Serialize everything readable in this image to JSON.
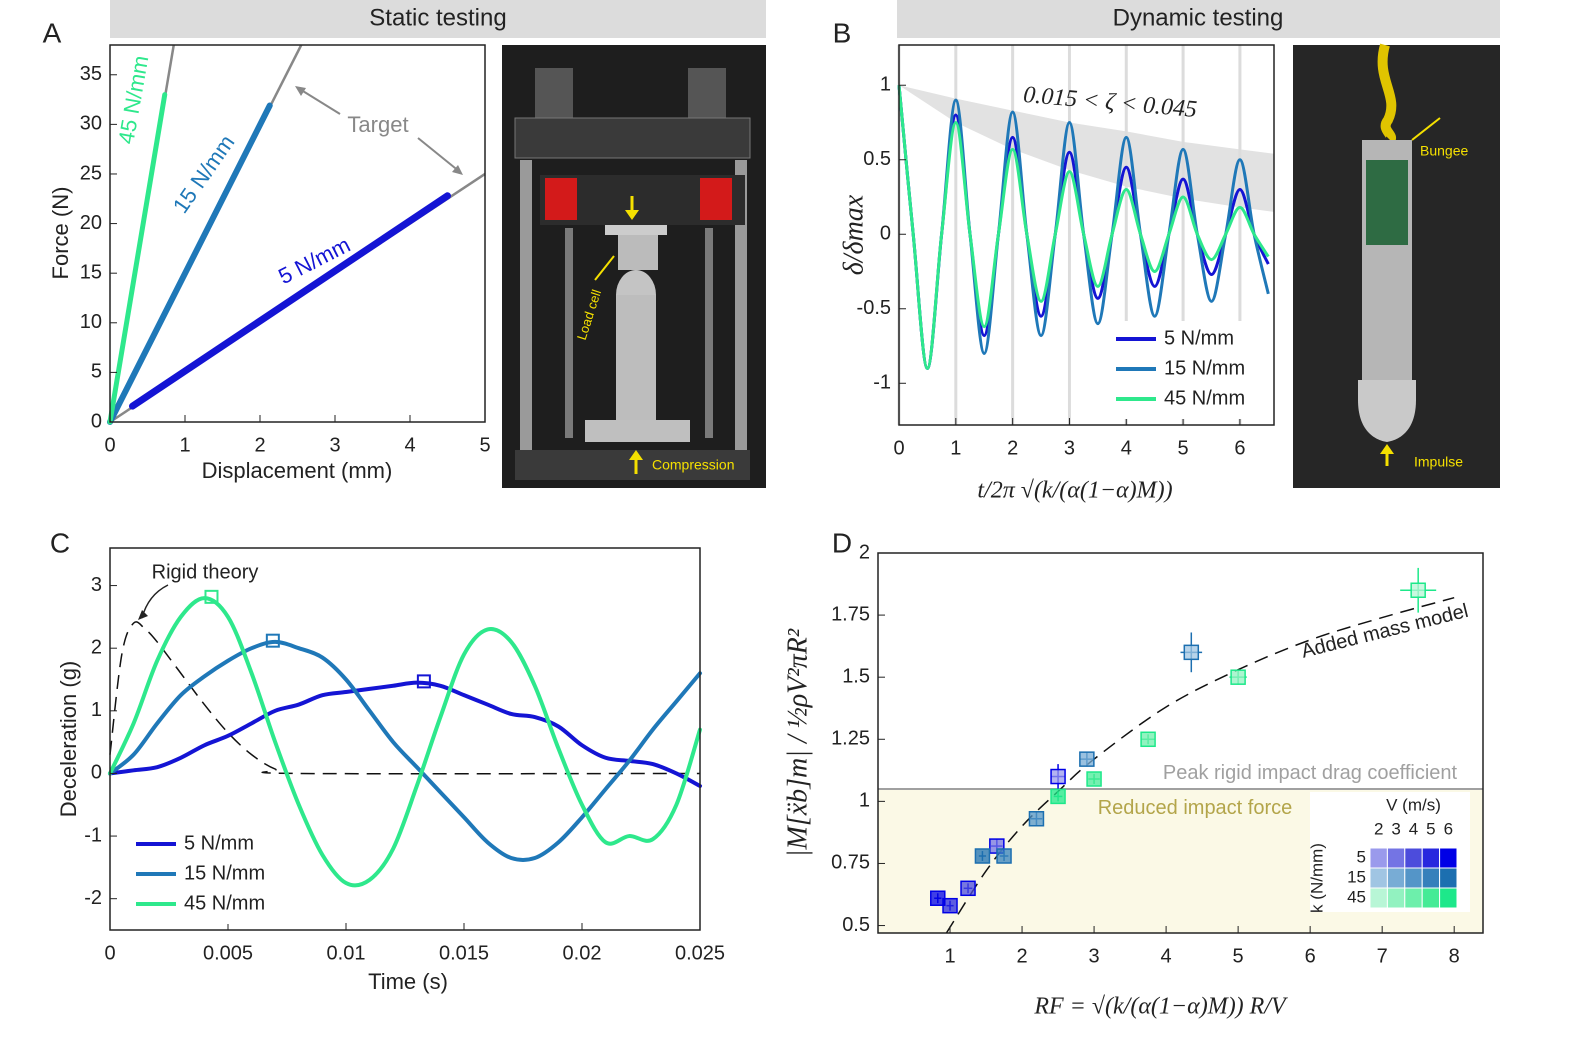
{
  "headers": [
    "Static testing",
    "Dynamic testing"
  ],
  "panel_labels": [
    "A",
    "B",
    "C",
    "D"
  ],
  "photos": [
    {
      "labels": [
        "Load cell",
        "Compression"
      ]
    },
    {
      "labels": [
        "Bungee",
        "Impulse"
      ]
    }
  ],
  "chart_data": [
    {
      "type": "line",
      "xlabel": "Displacement (mm)",
      "ylabel": "Force (N)",
      "xlim": [
        0,
        5
      ],
      "ylim": [
        0,
        38
      ],
      "xticks": [
        0,
        1,
        2,
        3,
        4,
        5
      ],
      "yticks": [
        0,
        5,
        10,
        15,
        20,
        25,
        30,
        35
      ],
      "series": [
        {
          "name": "5 N/mm",
          "color": "#1414d4",
          "x": [
            0.3,
            4.5
          ],
          "values": [
            1.6,
            22.8
          ]
        },
        {
          "name": "15 N/mm",
          "color": "#1f78b8",
          "x": [
            0,
            2.13
          ],
          "values": [
            0,
            31.9
          ]
        },
        {
          "name": "45 N/mm",
          "color": "#2ee88c",
          "x": [
            0,
            0.73
          ],
          "values": [
            0,
            33
          ]
        }
      ],
      "target_lines": {
        "color": "#888888",
        "lines": [
          {
            "x": [
              0,
              5
            ],
            "values": [
              0,
              25
            ]
          },
          {
            "x": [
              0,
              2.55
            ],
            "values": [
              0,
              38
            ]
          },
          {
            "x": [
              0,
              0.85
            ],
            "values": [
              0,
              38
            ]
          }
        ]
      },
      "annotation": "Target"
    },
    {
      "type": "oscillation",
      "xlabel": "t/2π √(k/(α(1−α)M))",
      "ylabel": "δ/δmax",
      "xlim": [
        0,
        6.6
      ],
      "ylim": [
        -1.28,
        1.27
      ],
      "xticks": [
        0,
        1,
        2,
        3,
        4,
        5,
        6
      ],
      "yticks": [
        -1,
        -0.5,
        0,
        0.5,
        1
      ],
      "xgrid": true,
      "legend": "lower right",
      "annotation": "0.015 < ζ < 0.045",
      "band": {
        "color": "#e2e2e2",
        "x": [
          0,
          1,
          2,
          3,
          4,
          5,
          6,
          6.6
        ],
        "upper": [
          1,
          0.91,
          0.83,
          0.75,
          0.69,
          0.62,
          0.57,
          0.54
        ],
        "lower": [
          1,
          0.75,
          0.57,
          0.43,
          0.32,
          0.24,
          0.18,
          0.15
        ]
      },
      "x": [
        0,
        0.25,
        0.5,
        0.75,
        1,
        1.25,
        1.5,
        1.75,
        2,
        2.25,
        2.5,
        2.75,
        3,
        3.25,
        3.5,
        3.75,
        4,
        4.25,
        4.5,
        4.75,
        5,
        5.25,
        5.5,
        5.75,
        6,
        6.25,
        6.5
      ],
      "series": [
        {
          "name": "5 N/mm",
          "color": "#1414d4",
          "values": [
            1,
            0,
            -0.9,
            0,
            0.8,
            0,
            -0.68,
            0,
            0.65,
            0,
            -0.55,
            0,
            0.55,
            0,
            -0.43,
            0,
            0.45,
            0,
            -0.35,
            0,
            0.37,
            0,
            -0.27,
            0,
            0.3,
            0,
            -0.2
          ]
        },
        {
          "name": "15 N/mm",
          "color": "#1f78b8",
          "values": [
            1,
            0,
            -0.9,
            0,
            0.9,
            0,
            -0.8,
            0,
            0.82,
            0,
            -0.68,
            0,
            0.75,
            0,
            -0.6,
            0,
            0.65,
            0,
            -0.55,
            0,
            0.57,
            0,
            -0.45,
            0,
            0.5,
            0,
            -0.4
          ]
        },
        {
          "name": "45 N/mm",
          "color": "#2ee88c",
          "values": [
            1,
            0,
            -0.9,
            0,
            0.75,
            0,
            -0.62,
            0,
            0.57,
            0,
            -0.45,
            0,
            0.42,
            0,
            -0.35,
            0,
            0.3,
            0,
            -0.25,
            0,
            0.25,
            0,
            -0.17,
            0,
            0.18,
            0,
            -0.15
          ]
        }
      ]
    },
    {
      "type": "line",
      "xlabel": "Time (s)",
      "ylabel": "Deceleration (g)",
      "xlim": [
        0,
        0.025
      ],
      "ylim": [
        -2.5,
        3.6
      ],
      "xticks": [
        0,
        0.005,
        0.01,
        0.015,
        0.02,
        0.025
      ],
      "yticks": [
        -2,
        -1,
        0,
        1,
        2,
        3
      ],
      "legend": "lower left",
      "x": [
        0,
        0.001,
        0.002,
        0.003,
        0.004,
        0.005,
        0.006,
        0.007,
        0.008,
        0.009,
        0.01,
        0.011,
        0.012,
        0.013,
        0.014,
        0.015,
        0.016,
        0.017,
        0.018,
        0.019,
        0.02,
        0.021,
        0.022,
        0.023,
        0.024,
        0.025
      ],
      "series": [
        {
          "name": "5 N/mm",
          "color": "#1414d4",
          "values": [
            0,
            0.05,
            0.1,
            0.25,
            0.45,
            0.6,
            0.8,
            1.0,
            1.1,
            1.25,
            1.3,
            1.35,
            1.4,
            1.45,
            1.4,
            1.25,
            1.1,
            0.95,
            0.9,
            0.75,
            0.45,
            0.25,
            0.2,
            0.15,
            0,
            -0.2
          ],
          "peak": {
            "x": 0.0133,
            "value": 1.47
          }
        },
        {
          "name": "15 N/mm",
          "color": "#1f78b8",
          "values": [
            0,
            0.3,
            0.8,
            1.25,
            1.55,
            1.8,
            2.0,
            2.1,
            2.0,
            1.85,
            1.5,
            1.0,
            0.5,
            0.1,
            -0.3,
            -0.7,
            -1.1,
            -1.35,
            -1.35,
            -1.1,
            -0.7,
            -0.25,
            0.2,
            0.7,
            1.15,
            1.6
          ],
          "peak": {
            "x": 0.0069,
            "value": 2.12
          }
        },
        {
          "name": "45 N/mm",
          "color": "#2ee88c",
          "values": [
            0,
            0.8,
            1.8,
            2.5,
            2.8,
            2.5,
            1.6,
            0.5,
            -0.5,
            -1.3,
            -1.75,
            -1.7,
            -1.2,
            -0.2,
            0.9,
            1.9,
            2.3,
            2.1,
            1.4,
            0.4,
            -0.5,
            -1.1,
            -1.0,
            -1.05,
            -0.5,
            0.7
          ],
          "peak": {
            "x": 0.0043,
            "value": 2.82
          }
        }
      ],
      "rigid_theory": {
        "name": "Rigid theory",
        "color": "#111111",
        "x": [
          0,
          0.0005,
          0.001,
          0.0015,
          0.002,
          0.003,
          0.004,
          0.005,
          0.006,
          0.007,
          0.008,
          0.025
        ],
        "values": [
          0.3,
          1.9,
          2.4,
          2.3,
          2.1,
          1.6,
          1.1,
          0.65,
          0.3,
          0.07,
          0,
          0
        ]
      }
    },
    {
      "type": "scatter",
      "xlabel": "RF = √(k/(α(1−α)M)) R/V",
      "ylabel": "|M[ẍb]m| / ½ρV²πR²",
      "xlim": [
        0,
        8.4
      ],
      "ylim": [
        0.47,
        2
      ],
      "xticks": [
        1,
        2,
        3,
        4,
        5,
        6,
        7,
        8
      ],
      "yticks": [
        0.5,
        0.75,
        1,
        1.25,
        1.5,
        1.75,
        2
      ],
      "ref_line": {
        "value": 1.05,
        "label": "Peak rigid impact drag coefficient",
        "color": "#a0a0a0"
      },
      "region": {
        "label": "Reduced impact force",
        "color": "#fbf9e6",
        "text_color": "#b3a54a"
      },
      "model": {
        "name": "Added mass model",
        "x": [
          0.95,
          1.5,
          2,
          2.5,
          3,
          4,
          5,
          6,
          7,
          8
        ],
        "values": [
          0.47,
          0.72,
          0.9,
          1.04,
          1.17,
          1.38,
          1.53,
          1.65,
          1.74,
          1.82
        ]
      },
      "inset": {
        "title": "V (m/s)",
        "ylabel": "k (N/mm)",
        "v_labels": [
          2,
          3,
          4,
          5,
          6
        ]
      },
      "series": [
        {
          "name": "5",
          "colors": [
            "#9a9aec",
            "#7474e4",
            "#4c4cdc",
            "#2828de",
            "#0000e6"
          ],
          "x": [
            2.5,
            1.65,
            1.25,
            1.0,
            0.83
          ],
          "values": [
            1.1,
            0.82,
            0.65,
            0.58,
            0.61
          ],
          "xerr": [
            0.1,
            0.08,
            0.06,
            0.05,
            0.05
          ],
          "yerr": [
            0.05,
            0.03,
            0.02,
            0.02,
            0.02
          ]
        },
        {
          "name": "15",
          "colors": [
            "#a0c5e3",
            "#78acd5",
            "#5495c8",
            "#3680bb",
            "#1c6fb0"
          ],
          "x": [
            4.35,
            2.9,
            2.2,
            1.75,
            1.45
          ],
          "values": [
            1.6,
            1.17,
            0.93,
            0.78,
            0.78
          ],
          "xerr": [
            0.15,
            0.1,
            0.08,
            0.06,
            0.05
          ],
          "yerr": [
            0.08,
            0.03,
            0.03,
            0.02,
            0.02
          ]
        },
        {
          "name": "45",
          "colors": [
            "#b8f6d6",
            "#92f2c0",
            "#6defab",
            "#45eb96",
            "#1de88a"
          ],
          "x": [
            7.5,
            5.0,
            3.75,
            3.0,
            2.5
          ],
          "values": [
            1.85,
            1.5,
            1.25,
            1.09,
            1.02
          ],
          "xerr": [
            0.25,
            0.12,
            0.1,
            0.08,
            0.06
          ],
          "yerr": [
            0.09,
            0.03,
            0.02,
            0.02,
            0.02
          ]
        }
      ]
    }
  ]
}
